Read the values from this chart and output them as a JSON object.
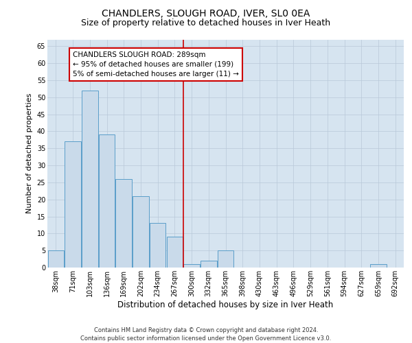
{
  "title": "CHANDLERS, SLOUGH ROAD, IVER, SL0 0EA",
  "subtitle": "Size of property relative to detached houses in Iver Heath",
  "xlabel": "Distribution of detached houses by size in Iver Heath",
  "ylabel": "Number of detached properties",
  "categories": [
    "38sqm",
    "71sqm",
    "103sqm",
    "136sqm",
    "169sqm",
    "202sqm",
    "234sqm",
    "267sqm",
    "300sqm",
    "332sqm",
    "365sqm",
    "398sqm",
    "430sqm",
    "463sqm",
    "496sqm",
    "529sqm",
    "561sqm",
    "594sqm",
    "627sqm",
    "659sqm",
    "692sqm"
  ],
  "values": [
    5,
    37,
    52,
    39,
    26,
    21,
    13,
    9,
    1,
    2,
    5,
    0,
    0,
    0,
    0,
    0,
    0,
    0,
    0,
    1,
    0
  ],
  "bar_color": "#c9daea",
  "bar_edge_color": "#5a9ec9",
  "grid_color": "#b8c8d8",
  "background_color": "#d6e4f0",
  "vline_color": "#cc0000",
  "annotation_text": "CHANDLERS SLOUGH ROAD: 289sqm\n← 95% of detached houses are smaller (199)\n5% of semi-detached houses are larger (11) →",
  "annotation_box_color": "#cc0000",
  "ylim": [
    0,
    67
  ],
  "yticks": [
    0,
    5,
    10,
    15,
    20,
    25,
    30,
    35,
    40,
    45,
    50,
    55,
    60,
    65
  ],
  "footer": "Contains HM Land Registry data © Crown copyright and database right 2024.\nContains public sector information licensed under the Open Government Licence v3.0.",
  "title_fontsize": 10,
  "subtitle_fontsize": 9,
  "xlabel_fontsize": 8.5,
  "ylabel_fontsize": 8,
  "tick_fontsize": 7,
  "annotation_fontsize": 7.5,
  "footer_fontsize": 6
}
